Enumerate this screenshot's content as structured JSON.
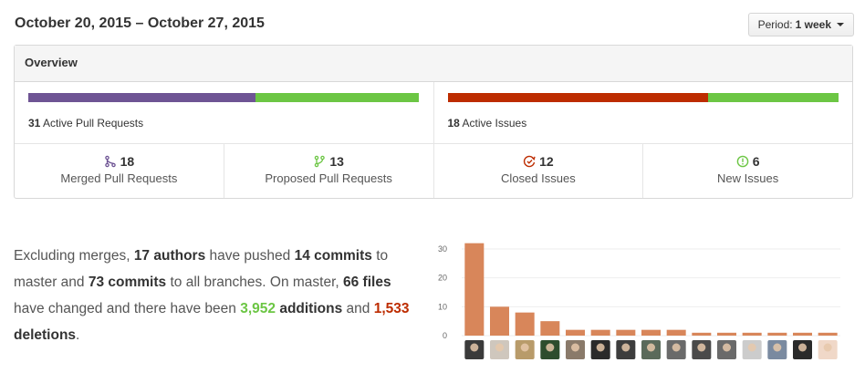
{
  "header": {
    "date_range": "October 20, 2015 – October 27, 2015",
    "period_label": "Period:",
    "period_value": "1 week"
  },
  "overview": {
    "title": "Overview",
    "pull_requests": {
      "count": "31",
      "label": "Active Pull Requests",
      "merged_fraction": 0.58,
      "merged_color": "#6e5494",
      "proposed_color": "#6cc644"
    },
    "issues": {
      "count": "18",
      "label": "Active Issues",
      "closed_fraction": 0.667,
      "closed_color": "#bd2c00",
      "new_color": "#6cc644"
    },
    "stats": [
      {
        "icon": "merged-pr-icon",
        "count": "18",
        "label": "Merged Pull Requests",
        "color": "#6e5494"
      },
      {
        "icon": "proposed-pr-icon",
        "count": "13",
        "label": "Proposed Pull Requests",
        "color": "#6cc644"
      },
      {
        "icon": "closed-issue-icon",
        "count": "12",
        "label": "Closed Issues",
        "color": "#bd2c00"
      },
      {
        "icon": "new-issue-icon",
        "count": "6",
        "label": "New Issues",
        "color": "#6cc644"
      }
    ]
  },
  "narrative": {
    "p1": "Excluding merges, ",
    "authors": "17 authors",
    "p2": " have pushed ",
    "commits_master": "14 commits",
    "p3": " to master and ",
    "commits_all": "73 commits",
    "p4": " to all branches. On master, ",
    "files": "66 files",
    "p5": " have changed and there have been ",
    "additions_num": "3,952",
    "additions_word": " additions",
    "p6": " and ",
    "deletions_num": "1,533",
    "deletions_word": " deletions",
    "p7": "."
  },
  "chart_data": {
    "type": "bar",
    "categories": [
      "author-1",
      "author-2",
      "author-3",
      "author-4",
      "author-5",
      "author-6",
      "author-7",
      "author-8",
      "author-9",
      "author-10",
      "author-11",
      "author-12",
      "author-13",
      "author-14",
      "author-15"
    ],
    "values": [
      32,
      10,
      8,
      5,
      2,
      2,
      2,
      2,
      2,
      1,
      1,
      1,
      1,
      1,
      1
    ],
    "ylim": [
      0,
      30
    ],
    "yticks": [
      "0",
      "10",
      "20",
      "30"
    ],
    "bar_color": "#d8865a",
    "avatar_colors": [
      "#3a3a3a",
      "#cfc7bd",
      "#b89b6a",
      "#2d4d2d",
      "#8a7a6a",
      "#2a2a2a",
      "#3d3d3d",
      "#5a6a5a",
      "#6a6a6a",
      "#4a4a4a",
      "#6a6a6a",
      "#cccccc",
      "#7a8aa0",
      "#2a2a2a",
      "#f0d8c8"
    ]
  }
}
